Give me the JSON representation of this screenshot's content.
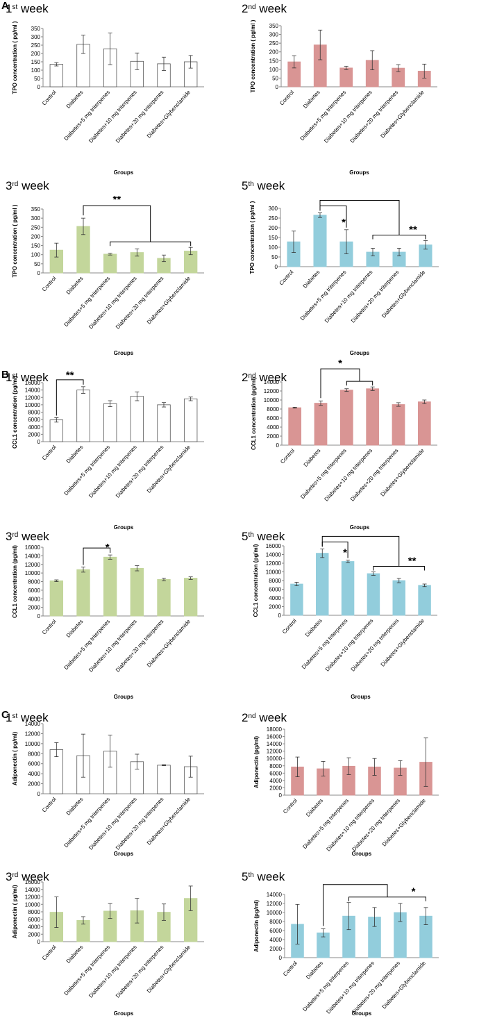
{
  "panels": [
    "A",
    "B",
    "C"
  ],
  "chart_data": [
    {
      "id": "A1",
      "type": "bar",
      "panel": "A",
      "week": "1",
      "week_suffix": "st",
      "week_label": " week",
      "color": "#ffffff",
      "ylabel": "TPO concentration ( pg/ml )",
      "xlabel": "Groups",
      "ylim": [
        0,
        350
      ],
      "yticks": [
        0,
        50,
        100,
        150,
        200,
        250,
        300,
        350
      ],
      "categories": [
        "Control",
        "Diabetes",
        "Diabetes+5 mg triterpenes",
        "Diabetes+10 mg triterpenes",
        "Diabetes+20 mg triterpenes",
        "Diabetes+Glybenclamide"
      ],
      "values": [
        135,
        255,
        228,
        153,
        138,
        150
      ],
      "errors": [
        10,
        55,
        95,
        50,
        40,
        38
      ],
      "significance": []
    },
    {
      "id": "A2",
      "type": "bar",
      "panel": "A",
      "week": "2",
      "week_suffix": "nd",
      "week_label": " week",
      "color": "#d99594",
      "ylabel": "TPO concentration ( pg/ml )",
      "xlabel": "Groups",
      "ylim": [
        0,
        350
      ],
      "yticks": [
        0,
        50,
        100,
        150,
        200,
        250,
        300,
        350
      ],
      "categories": [
        "Control",
        "Diabetes",
        "Diabetes+5 mg triterpenes",
        "Diabetes+10 mg triterpenes",
        "Diabetes+20 mg triterpenes",
        "Diabetes+Glybenclamide"
      ],
      "values": [
        143,
        240,
        108,
        152,
        107,
        90
      ],
      "errors": [
        35,
        85,
        10,
        55,
        20,
        40
      ],
      "significance": []
    },
    {
      "id": "A3",
      "type": "bar",
      "panel": "A",
      "week": "3",
      "week_suffix": "rd",
      "week_label": " week",
      "color": "#c3d69b",
      "ylabel": "TPO concentration ( pg/ml )",
      "xlabel": "Groups",
      "ylim": [
        0,
        350
      ],
      "yticks": [
        0,
        50,
        100,
        150,
        200,
        250,
        300,
        350
      ],
      "categories": [
        "Control",
        "Diabetes",
        "Diabetes+5 mg triterpenes",
        "Diabetes+10 mg triterpenes",
        "Diabetes+20 mg triterpenes",
        "Diabetes+Glybenclamide"
      ],
      "values": [
        125,
        255,
        103,
        112,
        80,
        120
      ],
      "errors": [
        38,
        45,
        5,
        20,
        18,
        20
      ],
      "significance": [
        {
          "label": "**"
        }
      ]
    },
    {
      "id": "A4",
      "type": "bar",
      "panel": "A",
      "week": "5",
      "week_suffix": "th",
      "week_label": " week",
      "color": "#92cddc",
      "ylabel": "TPO concentration ( pg/ml )",
      "xlabel": "Groups",
      "ylim": [
        0,
        300
      ],
      "yticks": [
        0,
        50,
        100,
        150,
        200,
        250,
        300
      ],
      "categories": [
        "Control",
        "Diabetes",
        "Diabetes+5 mg triterpenes",
        "Diabetes+10 mg triterpenes",
        "Diabetes+20 mg triterpenes",
        "Diabetes+Glybenclamide"
      ],
      "values": [
        128,
        265,
        128,
        75,
        75,
        112
      ],
      "errors": [
        55,
        12,
        62,
        20,
        20,
        22
      ],
      "significance": [
        {
          "label": "*"
        },
        {
          "label": "**"
        }
      ]
    },
    {
      "id": "B1",
      "type": "bar",
      "panel": "B",
      "week": "1",
      "week_suffix": "st",
      "week_label": " week",
      "color": "#ffffff",
      "ylabel": "CCL1 concentration (pg/ml)",
      "xlabel": "Groups",
      "ylim": [
        0,
        16000
      ],
      "yticks": [
        0,
        2000,
        4000,
        6000,
        8000,
        10000,
        12000,
        14000,
        16000
      ],
      "categories": [
        "Control",
        "Diabetes",
        "Diabetes+5 mg triterpenes",
        "Diabetes+10 mg triterpenes",
        "Diabetes+20 mg triterpenes",
        "Diabetes+Glybenclamide"
      ],
      "values": [
        5900,
        14000,
        10300,
        12300,
        10000,
        11600
      ],
      "errors": [
        600,
        900,
        800,
        1200,
        600,
        500
      ],
      "significance": [
        {
          "label": "**"
        }
      ]
    },
    {
      "id": "B2",
      "type": "bar",
      "panel": "B",
      "week": "2",
      "week_suffix": "nd",
      "week_label": " week",
      "color": "#d99594",
      "ylabel": "CCL1 concentration (pg/ml)",
      "xlabel": "Groups",
      "ylim": [
        0,
        14000
      ],
      "yticks": [
        0,
        2000,
        4000,
        6000,
        8000,
        10000,
        12000,
        14000
      ],
      "categories": [
        "Control",
        "Diabetes",
        "Diabetes+5 mg triterpenes",
        "Diabetes+10 mg triterpenes",
        "Diabetes+20 mg triterpenes",
        "Diabetes+Glybenclamide"
      ],
      "values": [
        8300,
        9300,
        12200,
        12500,
        9000,
        9600
      ],
      "errors": [
        100,
        500,
        300,
        400,
        400,
        400
      ],
      "significance": [
        {
          "label": "*"
        }
      ]
    },
    {
      "id": "B3",
      "type": "bar",
      "panel": "B",
      "week": "3",
      "week_suffix": "rd",
      "week_label": " week",
      "color": "#c3d69b",
      "ylabel": "CCL1 concentration (pg/ml)",
      "xlabel": "Groups",
      "ylim": [
        0,
        16000
      ],
      "yticks": [
        0,
        2000,
        4000,
        6000,
        8000,
        10000,
        12000,
        14000,
        16000
      ],
      "categories": [
        "Control",
        "Diabetes",
        "Diabetes+5 mg triterpenes",
        "Diabetes+10 mg triterpenes",
        "Diabetes+20 mg triterpenes",
        "Diabetes+Glybenclamide"
      ],
      "values": [
        8200,
        10800,
        13700,
        11100,
        8500,
        8800
      ],
      "errors": [
        200,
        600,
        500,
        600,
        300,
        300
      ],
      "significance": [
        {
          "label": "*"
        }
      ]
    },
    {
      "id": "B4",
      "type": "bar",
      "panel": "B",
      "week": "5",
      "week_suffix": "th",
      "week_label": " week",
      "color": "#92cddc",
      "ylabel": "CCL1 concentration (pg/ml)",
      "xlabel": "Groups",
      "ylim": [
        0,
        16000
      ],
      "yticks": [
        0,
        2000,
        4000,
        6000,
        8000,
        10000,
        12000,
        14000,
        16000
      ],
      "categories": [
        "Control",
        "Diabetes",
        "Diabetes+5 mg triterpenes",
        "Diabetes+10 mg triterpenes",
        "Diabetes+20 mg triterpenes",
        "Diabetes+Glybenclamide"
      ],
      "values": [
        7200,
        14300,
        12400,
        9600,
        8000,
        6900
      ],
      "errors": [
        400,
        1000,
        300,
        400,
        500,
        300
      ],
      "significance": [
        {
          "label": "*"
        },
        {
          "label": "**"
        }
      ]
    },
    {
      "id": "C1",
      "type": "bar",
      "panel": "C",
      "week": "1",
      "week_suffix": "st",
      "week_label": " week",
      "color": "#ffffff",
      "ylabel": "Adiponectin ( pg/ml)",
      "xlabel": "Groups",
      "ylim": [
        0,
        14000
      ],
      "yticks": [
        0,
        2000,
        4000,
        6000,
        8000,
        10000,
        12000,
        14000
      ],
      "categories": [
        "Control",
        "Diabetes",
        "Diabetes+5 mg triterpenes",
        "Diabetes+10 mg triterpenes",
        "Diabetes+20 mg triterpenes",
        "Diabetes+Glybenclamide"
      ],
      "values": [
        8800,
        7600,
        8500,
        6400,
        5700,
        5400
      ],
      "errors": [
        1400,
        4300,
        3200,
        1500,
        100,
        2100
      ],
      "significance": []
    },
    {
      "id": "C2",
      "type": "bar",
      "panel": "C",
      "week": "2",
      "week_suffix": "nd",
      "week_label": " week",
      "color": "#d99594",
      "ylabel": "Adiponectin (pg/ml)",
      "xlabel": "Groups",
      "ylim": [
        0,
        18000
      ],
      "yticks": [
        0,
        2000,
        4000,
        6000,
        8000,
        10000,
        12000,
        14000,
        16000,
        18000
      ],
      "categories": [
        "Control",
        "Diabetes",
        "Diabetes+5 mg triterpenes",
        "Diabetes+10 mg triterpenes",
        "Diabetes+20 mg triterpenes",
        "Diabetes+Glybenclamide"
      ],
      "values": [
        7700,
        7200,
        7900,
        7700,
        7400,
        9000
      ],
      "errors": [
        2700,
        2000,
        2300,
        2300,
        2000,
        6600
      ],
      "significance": []
    },
    {
      "id": "C3",
      "type": "bar",
      "panel": "C",
      "week": "3",
      "week_suffix": "rd",
      "week_label": " week",
      "color": "#c3d69b",
      "ylabel": "Adiponectin ( pg/ml)",
      "xlabel": "Groups",
      "ylim": [
        0,
        16000
      ],
      "yticks": [
        0,
        2000,
        4000,
        6000,
        8000,
        10000,
        12000,
        14000,
        16000
      ],
      "categories": [
        "Control",
        "Diabetes",
        "Diabetes+5 mg triterpenes",
        "Diabetes+10 mg triterpenes",
        "Diabetes+20 mg triterpenes",
        "Diabetes+Glybenclamide"
      ],
      "values": [
        7900,
        5700,
        8200,
        8300,
        7900,
        11600
      ],
      "errors": [
        4100,
        1000,
        2000,
        3300,
        2200,
        3300
      ],
      "significance": []
    },
    {
      "id": "C4",
      "type": "bar",
      "panel": "C",
      "week": "5",
      "week_suffix": "th",
      "week_label": " week",
      "color": "#92cddc",
      "ylabel": "Adiponectin (pg/ml)",
      "xlabel": "Groups",
      "ylim": [
        0,
        14000
      ],
      "yticks": [
        0,
        2000,
        4000,
        6000,
        8000,
        10000,
        12000,
        14000
      ],
      "categories": [
        "Control",
        "Diabetes",
        "Diabetes+5 mg triterpenes",
        "Diabetes+10 mg triterpenes",
        "Diabetes+20 mg triterpenes",
        "Diabetes+Glybenclamide"
      ],
      "values": [
        7400,
        5500,
        9200,
        9000,
        10000,
        9200
      ],
      "errors": [
        4400,
        900,
        3000,
        2100,
        2000,
        1900
      ],
      "significance": [
        {
          "label": "*"
        }
      ]
    }
  ]
}
